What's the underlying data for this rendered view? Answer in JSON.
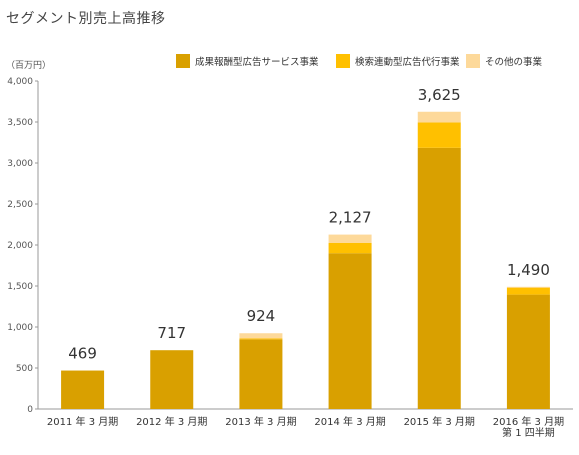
{
  "title": "セグメント別売上高推移",
  "chart_data": {
    "type": "bar",
    "stacked": true,
    "title": "セグメント別売上高推移",
    "ylabel": "（百万円）",
    "ylim": [
      0,
      4000
    ],
    "yticks": [
      "0",
      "500",
      "1,000",
      "1,500",
      "2,000",
      "2,500",
      "3,000",
      "3,500",
      "4,000"
    ],
    "ytick_values": [
      0,
      500,
      1000,
      1500,
      2000,
      2500,
      3000,
      3500,
      4000
    ],
    "grid": false,
    "legend_position": "top-right",
    "categories": [
      [
        "2011 年 3 月期"
      ],
      [
        "2012 年 3 月期"
      ],
      [
        "2013 年 3 月期"
      ],
      [
        "2014 年 3 月期"
      ],
      [
        "2015 年 3 月期"
      ],
      [
        "2016 年 3 月期",
        "第 1 四半期"
      ]
    ],
    "series": [
      {
        "name": "成果報酬型広告サービス事業",
        "color": "#d9a000",
        "values": [
          469,
          717,
          850,
          1900,
          3185,
          1395
        ]
      },
      {
        "name": "検索連動型広告代行事業",
        "color": "#ffc000",
        "values": [
          0,
          0,
          10,
          127,
          310,
          85
        ]
      },
      {
        "name": "その他の事業",
        "color": "#fdd99a",
        "values": [
          0,
          0,
          64,
          100,
          130,
          10
        ]
      }
    ],
    "totals": [
      "469",
      "717",
      "924",
      "2,127",
      "3,625",
      "1,490"
    ]
  }
}
